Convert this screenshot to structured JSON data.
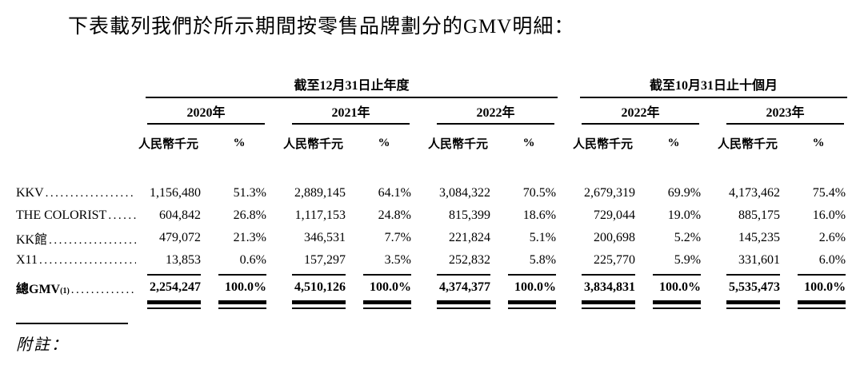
{
  "page": {
    "title": "下表載列我們於所示期間按零售品牌劃分的GMV明細："
  },
  "colors": {
    "ink": "#000000",
    "background": "#ffffff"
  },
  "table": {
    "period_groups": [
      {
        "label": "截至12月31日止年度",
        "years": [
          "2020年",
          "2021年",
          "2022年"
        ]
      },
      {
        "label": "截至10月31日止十個月",
        "years": [
          "2022年",
          "2023年"
        ]
      }
    ],
    "col_headers": {
      "amount": "人民幣千元",
      "pct": "%"
    },
    "leader_dots": "..................................................",
    "rows": [
      {
        "label": "KKV",
        "values": [
          [
            "1,156,480",
            "51.3%"
          ],
          [
            "2,889,145",
            "64.1%"
          ],
          [
            "3,084,322",
            "70.5%"
          ],
          [
            "2,679,319",
            "69.9%"
          ],
          [
            "4,173,462",
            "75.4%"
          ]
        ]
      },
      {
        "label": "THE COLORIST",
        "values": [
          [
            "604,842",
            "26.8%"
          ],
          [
            "1,117,153",
            "24.8%"
          ],
          [
            "815,399",
            "18.6%"
          ],
          [
            "729,044",
            "19.0%"
          ],
          [
            "885,175",
            "16.0%"
          ]
        ]
      },
      {
        "label": "KK館",
        "values": [
          [
            "479,072",
            "21.3%"
          ],
          [
            "346,531",
            "7.7%"
          ],
          [
            "221,824",
            "5.1%"
          ],
          [
            "200,698",
            "5.2%"
          ],
          [
            "145,235",
            "2.6%"
          ]
        ]
      },
      {
        "label": "X11",
        "values": [
          [
            "13,853",
            "0.6%"
          ],
          [
            "157,297",
            "3.5%"
          ],
          [
            "252,832",
            "5.8%"
          ],
          [
            "225,770",
            "5.9%"
          ],
          [
            "331,601",
            "6.0%"
          ]
        ]
      }
    ],
    "total": {
      "label": "總GMV",
      "footnote_ref": "(1)",
      "values": [
        [
          "2,254,247",
          "100.0%"
        ],
        [
          "4,510,126",
          "100.0%"
        ],
        [
          "4,374,377",
          "100.0%"
        ],
        [
          "3,834,831",
          "100.0%"
        ],
        [
          "5,535,473",
          "100.0%"
        ]
      ]
    }
  },
  "footer": {
    "notes_label": "附註："
  }
}
